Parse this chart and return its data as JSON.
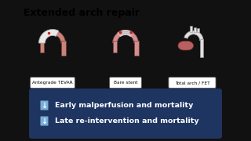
{
  "title": "Extended arch repair",
  "title_fontsize": 9,
  "title_fontweight": "bold",
  "labels": [
    "Antegrade TEVAR",
    "Bare stent",
    "Total arch / FET"
  ],
  "label_fontsize": 4.2,
  "bullet_texts": [
    "Early malperfusion and mortality",
    "Late re-intervention and mortality"
  ],
  "bullet_fontsize": 6.8,
  "bullet_color": "#ffffff",
  "bullet_arrow_color": "#7aaed6",
  "banner_color": "#1e3461",
  "bg_color": "#ffffff",
  "outer_bg_color": "#111111"
}
